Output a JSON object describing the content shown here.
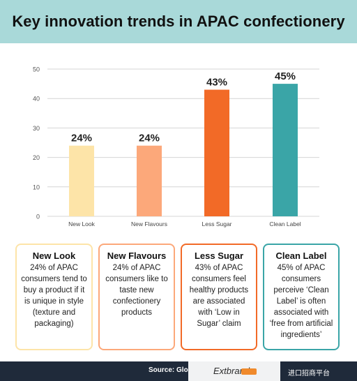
{
  "header": {
    "title": "Key innovation trends in APAC confectionery"
  },
  "chart_data": {
    "type": "bar",
    "categories": [
      "New Look",
      "New Flavours",
      "Less Sugar",
      "Clean Label"
    ],
    "values": [
      24,
      24,
      43,
      45
    ],
    "data_labels": [
      "24%",
      "24%",
      "43%",
      "45%"
    ],
    "yticks": [
      "0",
      "10",
      "20",
      "30",
      "40",
      "50"
    ],
    "ylim": [
      0,
      50
    ],
    "grid": true,
    "colors": [
      "#fde4a8",
      "#fca87a",
      "#f26a27",
      "#3aa5a7"
    ]
  },
  "cards": [
    {
      "title": "New Look",
      "text": "24% of APAC consumers tend to buy a product if it is unique in style (texture and packaging)",
      "border": "#fde4a8"
    },
    {
      "title": "New Flavours",
      "text": "24% of APAC consumers like to taste new confectionery products",
      "border": "#fca87a"
    },
    {
      "title": "Less Sugar",
      "text": "43% of APAC consumers feel healthy products are associated with ‘Low in Sugar’ claim",
      "border": "#f26a27"
    },
    {
      "title": "Clean Label",
      "text": "45% of APAC consumers perceive ‘Clean Label’ is often associated with ‘free from artificial ingredients’",
      "border": "#3aa5a7"
    }
  ],
  "footer": {
    "source": "Source: Glo",
    "watermark": "Extbrand",
    "watermark_cn": "进口招商平台"
  }
}
